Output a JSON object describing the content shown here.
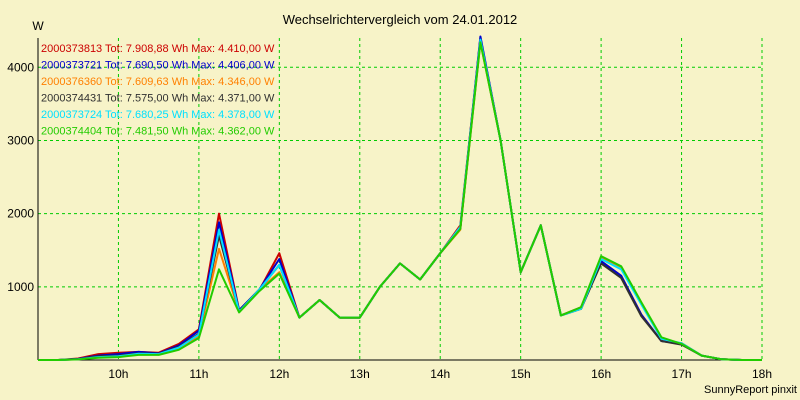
{
  "chart_data": {
    "type": "line",
    "title": "Wechselrichtervergleich vom 24.01.2012",
    "ylabel": "W",
    "xlabel": "",
    "footer": "SunnyReport pinxit",
    "xlim": [
      9.0,
      18.0
    ],
    "ylim": [
      0,
      4400
    ],
    "x_ticks": [
      10,
      11,
      12,
      13,
      14,
      15,
      16,
      17,
      18
    ],
    "x_tick_labels": [
      "10h",
      "11h",
      "12h",
      "13h",
      "14h",
      "15h",
      "16h",
      "17h",
      "18h"
    ],
    "y_ticks": [
      1000,
      2000,
      3000,
      4000
    ],
    "y_tick_labels": [
      "1000",
      "2000",
      "3000",
      "4000"
    ],
    "grid": true,
    "legend_position": "top-left",
    "x": [
      9.0,
      9.25,
      9.5,
      9.75,
      10.0,
      10.25,
      10.5,
      10.75,
      11.0,
      11.25,
      11.5,
      11.75,
      12.0,
      12.25,
      12.5,
      12.75,
      13.0,
      13.25,
      13.5,
      13.75,
      14.0,
      14.25,
      14.5,
      14.75,
      15.0,
      15.25,
      15.5,
      15.75,
      16.0,
      16.25,
      16.5,
      16.75,
      17.0,
      17.25,
      17.5,
      17.75,
      18.0
    ],
    "series": [
      {
        "name": "2000373813",
        "legend": "2000373813 Tot: 7.908,88 Wh Max: 4.410,00 W",
        "color": "#cc0000",
        "values": [
          0,
          0,
          20,
          80,
          100,
          110,
          100,
          220,
          420,
          2000,
          680,
          950,
          1460,
          580,
          820,
          580,
          580,
          1000,
          1320,
          1100,
          1460,
          1840,
          4400,
          3000,
          1200,
          1840,
          610,
          720,
          1350,
          1150,
          620,
          260,
          230,
          60,
          10,
          0,
          0
        ]
      },
      {
        "name": "2000373721",
        "legend": "2000373721 Tot: 7.690,50 Wh Max: 4.406,00 W",
        "color": "#0000cc",
        "values": [
          0,
          0,
          15,
          60,
          80,
          110,
          90,
          200,
          400,
          1880,
          680,
          960,
          1380,
          580,
          820,
          580,
          580,
          1000,
          1320,
          1100,
          1460,
          1800,
          4420,
          3000,
          1200,
          1840,
          610,
          700,
          1350,
          1150,
          620,
          260,
          220,
          60,
          10,
          0,
          0
        ]
      },
      {
        "name": "2000376360",
        "legend": "2000376360 Tot: 7.609,63 Wh Max: 4.346,00 W",
        "color": "#ff8000",
        "values": [
          0,
          0,
          10,
          40,
          50,
          80,
          80,
          160,
          330,
          1520,
          660,
          960,
          1200,
          580,
          820,
          580,
          580,
          1000,
          1320,
          1100,
          1460,
          1780,
          4340,
          3000,
          1200,
          1840,
          610,
          700,
          1400,
          1270,
          780,
          300,
          220,
          60,
          10,
          0,
          0
        ]
      },
      {
        "name": "2000374431",
        "legend": "2000374431 Tot: 7.575,00 Wh Max: 4.371,00 W",
        "color": "#303030",
        "values": [
          0,
          0,
          12,
          50,
          60,
          90,
          85,
          180,
          360,
          1700,
          670,
          960,
          1300,
          580,
          820,
          580,
          580,
          1000,
          1320,
          1100,
          1460,
          1800,
          4370,
          3000,
          1200,
          1840,
          610,
          700,
          1320,
          1120,
          600,
          260,
          210,
          60,
          10,
          0,
          0
        ]
      },
      {
        "name": "2000373724",
        "legend": "2000373724 Tot: 7.680,25 Wh Max: 4.378,00 W",
        "color": "#00e0ff",
        "values": [
          0,
          0,
          10,
          40,
          50,
          85,
          80,
          170,
          350,
          1780,
          660,
          960,
          1300,
          580,
          820,
          580,
          580,
          1000,
          1320,
          1100,
          1460,
          1820,
          4378,
          3000,
          1200,
          1840,
          610,
          700,
          1380,
          1240,
          760,
          290,
          230,
          60,
          10,
          0,
          0
        ]
      },
      {
        "name": "2000374404",
        "legend": "2000374404 Tot: 7.481,50 Wh Max: 4.362,00 W",
        "color": "#22cc00",
        "values": [
          0,
          0,
          8,
          30,
          40,
          70,
          70,
          140,
          300,
          1240,
          650,
          940,
          1180,
          580,
          820,
          580,
          580,
          1000,
          1320,
          1100,
          1460,
          1790,
          4340,
          3000,
          1200,
          1840,
          610,
          720,
          1420,
          1280,
          790,
          310,
          220,
          60,
          10,
          0,
          0
        ]
      }
    ]
  }
}
